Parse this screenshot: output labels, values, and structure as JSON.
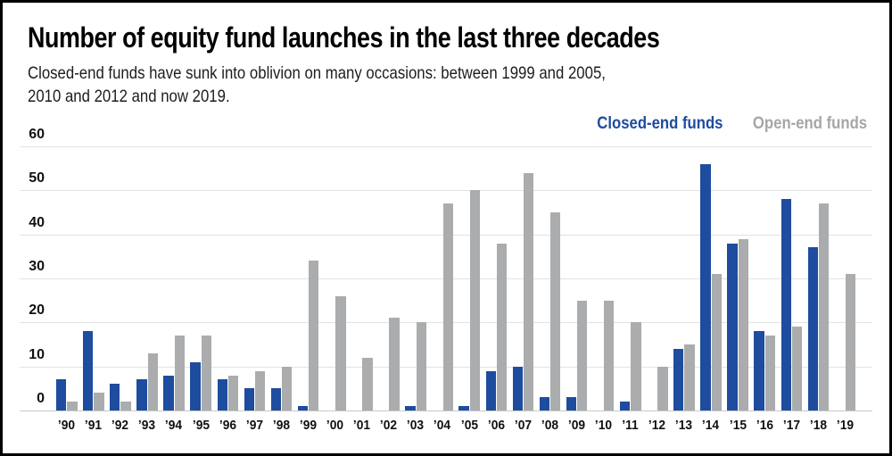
{
  "header": {
    "title": "Number of equity fund launches in the last three decades",
    "subtitle_line1": "Closed-end funds have sunk into oblivion on many occasions: between 1999 and 2005,",
    "subtitle_line2": "2010 and 2012 and now 2019."
  },
  "legend": {
    "closed_end_label": "Closed-end funds",
    "open_end_label": "Open-end funds"
  },
  "colors": {
    "closed_end": "#1e4c9f",
    "open_end": "#aaacae",
    "legend_open_end_text": "#a6a6a6",
    "gridline": "#e2e2e2",
    "baseline": "#c9c9c9",
    "text": "#111111",
    "background": "#ffffff",
    "border": "#000000"
  },
  "chart_data": {
    "type": "bar",
    "title": "Number of equity fund launches in the last three decades",
    "xlabel": "",
    "ylabel": "",
    "ylim": [
      0,
      60
    ],
    "yticks": [
      0,
      10,
      20,
      30,
      40,
      50,
      60
    ],
    "grid": true,
    "legend_position": "top-right",
    "categories": [
      "’90",
      "’91",
      "’92",
      "’93",
      "’94",
      "’95",
      "’96",
      "’97",
      "’98",
      "’99",
      "’00",
      "’01",
      "’02",
      "’03",
      "’04",
      "’05",
      "’06",
      "’07",
      "’08",
      "’09",
      "’10",
      "’11",
      "’12",
      "’13",
      "’14",
      "’15",
      "’16",
      "’17",
      "’18",
      "’19"
    ],
    "series": [
      {
        "name": "Closed-end funds",
        "color": "#1e4c9f",
        "values": [
          7,
          18,
          6,
          7,
          8,
          11,
          7,
          5,
          5,
          1,
          0,
          0,
          0,
          1,
          0,
          1,
          9,
          10,
          3,
          3,
          0,
          2,
          0,
          14,
          56,
          38,
          18,
          48,
          37,
          0
        ]
      },
      {
        "name": "Open-end funds",
        "color": "#aaacae",
        "values": [
          2,
          4,
          2,
          13,
          17,
          17,
          8,
          9,
          10,
          34,
          26,
          12,
          21,
          20,
          47,
          50,
          38,
          54,
          45,
          25,
          25,
          20,
          10,
          15,
          31,
          39,
          17,
          19,
          47,
          31
        ]
      }
    ]
  }
}
